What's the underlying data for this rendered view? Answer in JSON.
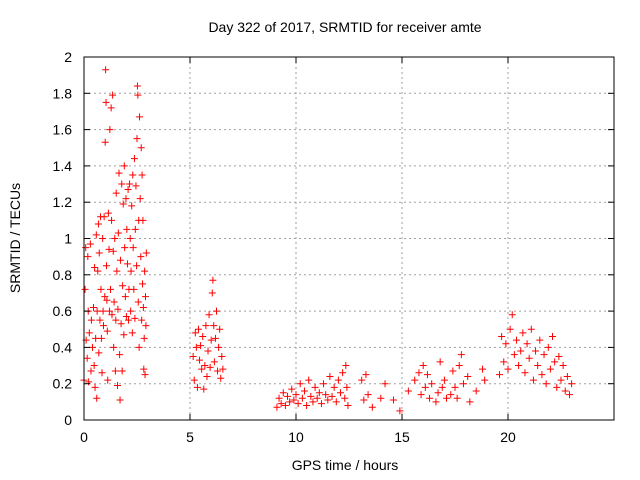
{
  "chart_data": {
    "type": "scatter",
    "title": "Day 322 of 2017, SRMTID for receiver amte",
    "xlabel": "GPS time / hours",
    "ylabel": "SRMTID / TECUs",
    "xlim": [
      0,
      25
    ],
    "ylim": [
      0,
      2
    ],
    "xticks": [
      0,
      5,
      10,
      15,
      20
    ],
    "yticks": [
      0,
      0.2,
      0.4,
      0.6,
      0.8,
      1,
      1.2,
      1.4,
      1.6,
      1.8,
      2
    ],
    "xtick_labels": [
      "0",
      "5",
      "10",
      "15",
      "20"
    ],
    "ytick_labels": [
      "0",
      "0.2",
      "0.4",
      "0.6",
      "0.8",
      "1",
      "1.2",
      "1.4",
      "1.6",
      "1.8",
      "2"
    ],
    "grid": true,
    "marker": "+",
    "color": "#ff0000",
    "series": [
      {
        "name": "SRMTID",
        "points": [
          [
            0.0,
            0.22
          ],
          [
            0.05,
            0.72
          ],
          [
            0.08,
            0.95
          ],
          [
            0.1,
            0.44
          ],
          [
            0.15,
            0.34
          ],
          [
            0.18,
            0.9
          ],
          [
            0.2,
            0.6
          ],
          [
            0.22,
            0.21
          ],
          [
            0.25,
            0.48
          ],
          [
            0.3,
            0.97
          ],
          [
            0.33,
            0.27
          ],
          [
            0.35,
            0.55
          ],
          [
            0.4,
            0.4
          ],
          [
            0.45,
            0.62
          ],
          [
            0.48,
            0.3
          ],
          [
            0.5,
            0.84
          ],
          [
            0.52,
            0.18
          ],
          [
            0.55,
            0.45
          ],
          [
            0.58,
            1.02
          ],
          [
            0.6,
            0.12
          ],
          [
            0.62,
            0.6
          ],
          [
            0.65,
            0.82
          ],
          [
            0.68,
            1.08
          ],
          [
            0.7,
            0.37
          ],
          [
            0.72,
            0.92
          ],
          [
            0.75,
            0.55
          ],
          [
            0.78,
            1.12
          ],
          [
            0.8,
            0.72
          ],
          [
            0.82,
            0.45
          ],
          [
            0.85,
            0.26
          ],
          [
            0.88,
            1.0
          ],
          [
            0.9,
            0.6
          ],
          [
            0.92,
            0.52
          ],
          [
            0.95,
            1.12
          ],
          [
            0.98,
            0.68
          ],
          [
            1.0,
            1.53
          ],
          [
            1.02,
            1.93
          ],
          [
            1.04,
            1.75
          ],
          [
            1.06,
            0.85
          ],
          [
            1.08,
            0.66
          ],
          [
            1.1,
            0.49
          ],
          [
            1.12,
            0.22
          ],
          [
            1.15,
            1.14
          ],
          [
            1.18,
            0.94
          ],
          [
            1.2,
            0.6
          ],
          [
            1.22,
            1.6
          ],
          [
            1.25,
            0.72
          ],
          [
            1.28,
            1.72
          ],
          [
            1.3,
            1.1
          ],
          [
            1.32,
            0.58
          ],
          [
            1.35,
            1.79
          ],
          [
            1.38,
            0.93
          ],
          [
            1.4,
            0.4
          ],
          [
            1.42,
            0.65
          ],
          [
            1.45,
            1.0
          ],
          [
            1.48,
            0.27
          ],
          [
            1.5,
            0.55
          ],
          [
            1.52,
            1.25
          ],
          [
            1.55,
            0.82
          ],
          [
            1.58,
            0.19
          ],
          [
            1.6,
            0.61
          ],
          [
            1.62,
            1.03
          ],
          [
            1.65,
            1.36
          ],
          [
            1.68,
            0.36
          ],
          [
            1.7,
            0.11
          ],
          [
            1.72,
            0.88
          ],
          [
            1.75,
            0.53
          ],
          [
            1.78,
            1.3
          ],
          [
            1.8,
            0.27
          ],
          [
            1.82,
            0.74
          ],
          [
            1.85,
            1.19
          ],
          [
            1.88,
            0.47
          ],
          [
            1.9,
            1.4
          ],
          [
            1.92,
            0.95
          ],
          [
            1.95,
            0.68
          ],
          [
            1.98,
            1.22
          ],
          [
            2.0,
            0.57
          ],
          [
            2.02,
            1.05
          ],
          [
            2.05,
            0.86
          ],
          [
            2.08,
            1.27
          ],
          [
            2.1,
            0.55
          ],
          [
            2.12,
            0.72
          ],
          [
            2.15,
            1.3
          ],
          [
            2.18,
            1.0
          ],
          [
            2.2,
            0.6
          ],
          [
            2.22,
            0.82
          ],
          [
            2.25,
            1.18
          ],
          [
            2.28,
            0.48
          ],
          [
            2.3,
            1.35
          ],
          [
            2.32,
            0.95
          ],
          [
            2.35,
            0.72
          ],
          [
            2.38,
            1.44
          ],
          [
            2.4,
            0.56
          ],
          [
            2.42,
            1.05
          ],
          [
            2.45,
            1.29
          ],
          [
            2.48,
            0.85
          ],
          [
            2.5,
            1.55
          ],
          [
            2.52,
            1.84
          ],
          [
            2.54,
            1.79
          ],
          [
            2.56,
            0.65
          ],
          [
            2.58,
            1.1
          ],
          [
            2.6,
            0.4
          ],
          [
            2.62,
            1.67
          ],
          [
            2.65,
            1.22
          ],
          [
            2.68,
            0.9
          ],
          [
            2.7,
            1.5
          ],
          [
            2.72,
            0.55
          ],
          [
            2.74,
            1.35
          ],
          [
            2.76,
            0.75
          ],
          [
            2.78,
            1.1
          ],
          [
            2.8,
            0.62
          ],
          [
            2.82,
            0.28
          ],
          [
            2.84,
            0.45
          ],
          [
            2.86,
            0.82
          ],
          [
            2.88,
            0.25
          ],
          [
            2.9,
            0.68
          ],
          [
            2.92,
            0.52
          ],
          [
            2.94,
            0.92
          ],
          [
            5.15,
            0.35
          ],
          [
            5.2,
            0.22
          ],
          [
            5.25,
            0.48
          ],
          [
            5.3,
            0.4
          ],
          [
            5.35,
            0.18
          ],
          [
            5.4,
            0.5
          ],
          [
            5.45,
            0.33
          ],
          [
            5.5,
            0.41
          ],
          [
            5.55,
            0.28
          ],
          [
            5.6,
            0.46
          ],
          [
            5.65,
            0.17
          ],
          [
            5.7,
            0.3
          ],
          [
            5.75,
            0.52
          ],
          [
            5.8,
            0.24
          ],
          [
            5.85,
            0.38
          ],
          [
            5.9,
            0.58
          ],
          [
            5.95,
            0.29
          ],
          [
            6.0,
            0.44
          ],
          [
            6.05,
            0.7
          ],
          [
            6.08,
            0.77
          ],
          [
            6.12,
            0.52
          ],
          [
            6.15,
            0.32
          ],
          [
            6.2,
            0.45
          ],
          [
            6.25,
            0.6
          ],
          [
            6.3,
            0.27
          ],
          [
            6.35,
            0.4
          ],
          [
            6.4,
            0.5
          ],
          [
            6.45,
            0.23
          ],
          [
            6.5,
            0.35
          ],
          [
            6.55,
            0.28
          ],
          [
            9.1,
            0.07
          ],
          [
            9.2,
            0.12
          ],
          [
            9.3,
            0.09
          ],
          [
            9.4,
            0.15
          ],
          [
            9.5,
            0.08
          ],
          [
            9.6,
            0.13
          ],
          [
            9.7,
            0.1
          ],
          [
            9.8,
            0.17
          ],
          [
            9.9,
            0.11
          ],
          [
            10.0,
            0.14
          ],
          [
            10.1,
            0.09
          ],
          [
            10.2,
            0.2
          ],
          [
            10.3,
            0.12
          ],
          [
            10.4,
            0.16
          ],
          [
            10.5,
            0.08
          ],
          [
            10.6,
            0.22
          ],
          [
            10.7,
            0.13
          ],
          [
            10.8,
            0.1
          ],
          [
            10.9,
            0.18
          ],
          [
            11.0,
            0.12
          ],
          [
            11.1,
            0.15
          ],
          [
            11.2,
            0.09
          ],
          [
            11.3,
            0.2
          ],
          [
            11.4,
            0.14
          ],
          [
            11.5,
            0.11
          ],
          [
            11.6,
            0.24
          ],
          [
            11.7,
            0.13
          ],
          [
            11.8,
            0.18
          ],
          [
            11.9,
            0.1
          ],
          [
            12.0,
            0.22
          ],
          [
            12.1,
            0.15
          ],
          [
            12.2,
            0.26
          ],
          [
            12.3,
            0.12
          ],
          [
            12.35,
            0.3
          ],
          [
            12.4,
            0.18
          ],
          [
            12.45,
            0.08
          ],
          [
            13.1,
            0.22
          ],
          [
            13.2,
            0.11
          ],
          [
            13.3,
            0.25
          ],
          [
            13.4,
            0.14
          ],
          [
            13.6,
            0.07
          ],
          [
            14.0,
            0.12
          ],
          [
            14.2,
            0.2
          ],
          [
            14.6,
            0.11
          ],
          [
            14.9,
            0.05
          ],
          [
            15.3,
            0.16
          ],
          [
            15.6,
            0.22
          ],
          [
            15.8,
            0.26
          ],
          [
            15.9,
            0.14
          ],
          [
            16.0,
            0.3
          ],
          [
            16.1,
            0.18
          ],
          [
            16.2,
            0.25
          ],
          [
            16.3,
            0.12
          ],
          [
            16.4,
            0.2
          ],
          [
            16.6,
            0.1
          ],
          [
            16.7,
            0.15
          ],
          [
            16.8,
            0.32
          ],
          [
            16.9,
            0.18
          ],
          [
            17.0,
            0.22
          ],
          [
            17.1,
            0.12
          ],
          [
            17.3,
            0.14
          ],
          [
            17.4,
            0.27
          ],
          [
            17.5,
            0.18
          ],
          [
            17.6,
            0.12
          ],
          [
            17.7,
            0.3
          ],
          [
            17.8,
            0.36
          ],
          [
            17.9,
            0.2
          ],
          [
            18.1,
            0.24
          ],
          [
            18.2,
            0.1
          ],
          [
            18.5,
            0.16
          ],
          [
            18.8,
            0.28
          ],
          [
            18.9,
            0.22
          ],
          [
            19.6,
            0.25
          ],
          [
            19.7,
            0.46
          ],
          [
            19.8,
            0.32
          ],
          [
            19.9,
            0.42
          ],
          [
            20.0,
            0.28
          ],
          [
            20.1,
            0.5
          ],
          [
            20.2,
            0.58
          ],
          [
            20.3,
            0.36
          ],
          [
            20.4,
            0.44
          ],
          [
            20.5,
            0.3
          ],
          [
            20.6,
            0.38
          ],
          [
            20.7,
            0.48
          ],
          [
            20.8,
            0.26
          ],
          [
            20.9,
            0.42
          ],
          [
            21.0,
            0.34
          ],
          [
            21.1,
            0.5
          ],
          [
            21.2,
            0.22
          ],
          [
            21.3,
            0.38
          ],
          [
            21.4,
            0.3
          ],
          [
            21.5,
            0.44
          ],
          [
            21.6,
            0.25
          ],
          [
            21.7,
            0.36
          ],
          [
            21.8,
            0.2
          ],
          [
            21.9,
            0.4
          ],
          [
            22.0,
            0.28
          ],
          [
            22.1,
            0.46
          ],
          [
            22.2,
            0.32
          ],
          [
            22.3,
            0.18
          ],
          [
            22.4,
            0.35
          ],
          [
            22.5,
            0.22
          ],
          [
            22.6,
            0.3
          ],
          [
            22.7,
            0.16
          ],
          [
            22.8,
            0.24
          ],
          [
            22.9,
            0.14
          ],
          [
            23.0,
            0.2
          ]
        ]
      }
    ]
  }
}
